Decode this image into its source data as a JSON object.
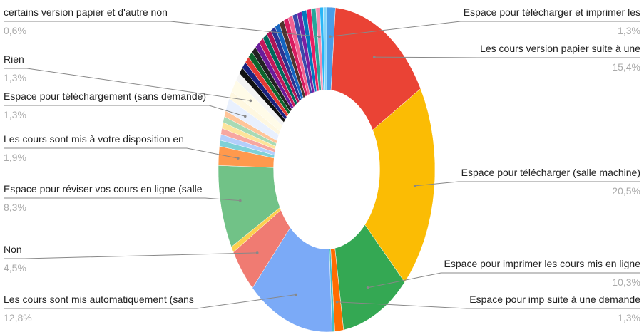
{
  "chart_data": {
    "type": "pie",
    "donut": true,
    "categories": [
      "Espace pour télécharger et imprimer les",
      "Les cours version papier suite à une",
      "Espace pour télécharger (salle machine)",
      "Espace pour imprimer les cours mis en ligne",
      "Espace pour imp suite à une demande",
      null,
      "Les cours sont mis automatiquement (sans",
      "Non",
      null,
      "Espace pour réviser vos cours en ligne (salle",
      "Les cours sont mis à votre disposition en",
      null,
      null,
      null,
      null,
      null,
      null,
      "Espace pour téléchargement (sans demande)",
      null,
      "Rien",
      null,
      null,
      null,
      null,
      null,
      null,
      null,
      null,
      null,
      null,
      null,
      null,
      null,
      null,
      null,
      null,
      null,
      null,
      null,
      null,
      "certains version papier et d'autre non",
      null,
      null
    ],
    "values": [
      1.3,
      15.4,
      20.5,
      10.3,
      1.3,
      0.4,
      12.8,
      4.5,
      0.6,
      8.3,
      1.9,
      0.6,
      0.6,
      0.6,
      0.6,
      0.6,
      0.6,
      1.3,
      0.8,
      1.3,
      0.8,
      0.7,
      0.7,
      0.7,
      0.7,
      0.7,
      0.7,
      0.7,
      0.7,
      0.7,
      0.7,
      0.7,
      0.7,
      0.7,
      0.7,
      0.7,
      0.7,
      0.7,
      0.7,
      0.7,
      0.6,
      0.5,
      0.5
    ],
    "value_labels": [
      "1,3%",
      "15,4%",
      "20,5%",
      "10,3%",
      "1,3%",
      null,
      "12,8%",
      "4,5%",
      null,
      "8,3%",
      "1,9%",
      null,
      null,
      null,
      null,
      null,
      null,
      "1,3%",
      null,
      "1,3%",
      null,
      null,
      null,
      null,
      null,
      null,
      null,
      null,
      null,
      null,
      null,
      null,
      null,
      null,
      null,
      null,
      null,
      null,
      null,
      null,
      "0,6%",
      null,
      null
    ],
    "colors": [
      "#4a9ee8",
      "#ea4335",
      "#fbbc04",
      "#34a853",
      "#ff6d01",
      "#46bdc6",
      "#7baaf7",
      "#f07b72",
      "#fcd04f",
      "#71c287",
      "#ff994d",
      "#7ed1d7",
      "#b3cefb",
      "#f7a7a0",
      "#fde49b",
      "#a8dab5",
      "#ffc599",
      "#e8f0fe",
      "#fef7e0",
      "#fffbe8",
      "#f4f4f4",
      "#111111",
      "#1a237e",
      "#e53935",
      "#0d652d",
      "#222222",
      "#6a1b9a",
      "#c2185b",
      "#00695c",
      "#ad1457",
      "#283593",
      "#1565c0",
      "#4e342e",
      "#d81b60",
      "#f06292",
      "#3949ab",
      "#7b1fa2",
      "#0277bd",
      "#e91e63",
      "#26a69a",
      "#f48fb1",
      "#29b6f6",
      "#81d4fa"
    ]
  }
}
